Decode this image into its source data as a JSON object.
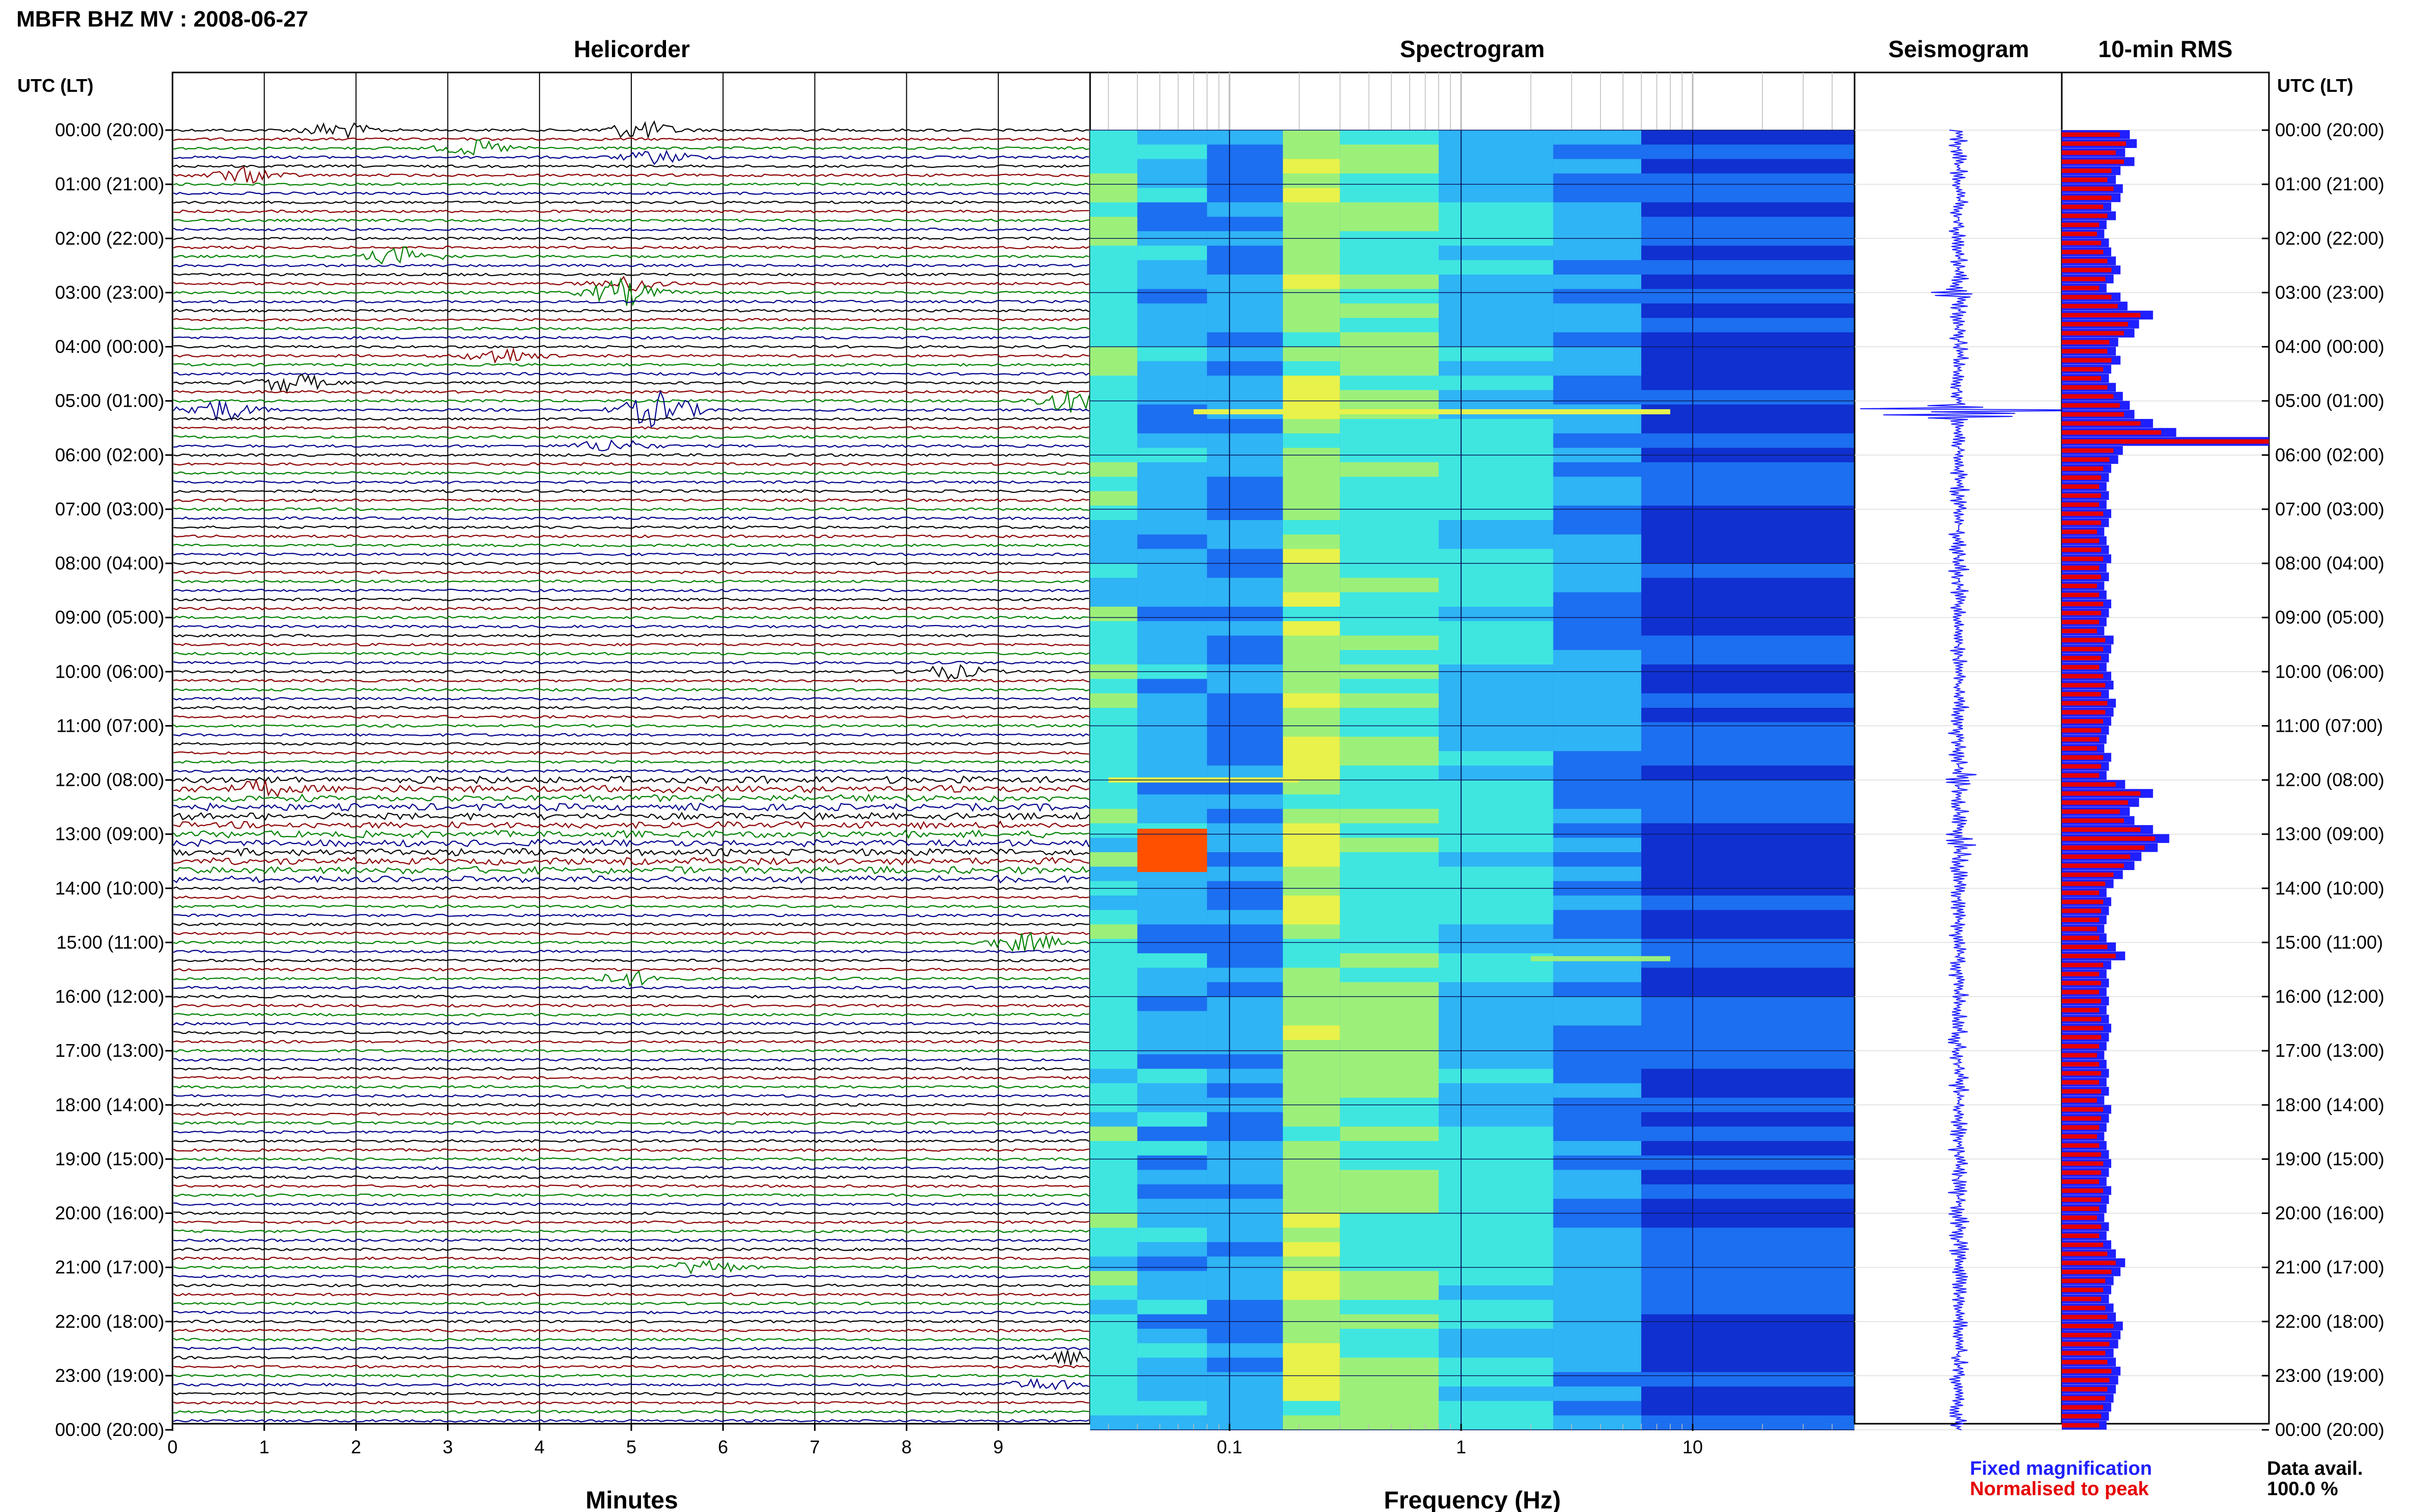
{
  "header": {
    "title": "MBFR BHZ MV : 2008-06-27"
  },
  "panels": {
    "helicorder_title": "Helicorder",
    "spectrogram_title": "Spectrogram",
    "seismogram_title": "Seismogram",
    "rms_title": "10-min RMS",
    "time_axis_label_left": "UTC (LT)",
    "time_axis_label_right": "UTC (LT)",
    "helicorder_xlabel": "Minutes",
    "spectrogram_xlabel": "Frequency (Hz)"
  },
  "legend": {
    "fixed": "Fixed magnification",
    "normalised": "Normalised to peak",
    "colors": {
      "fixed": "#1f1fff",
      "normalised": "#e60000"
    }
  },
  "availability": {
    "label": "Data avail.",
    "value": "100.0 %"
  },
  "chart_data": [
    {
      "type": "line",
      "name": "helicorder",
      "xlabel": "Minutes",
      "xlim": [
        0,
        10
      ],
      "x_ticks": [
        "0",
        "1",
        "2",
        "3",
        "4",
        "5",
        "6",
        "7",
        "8",
        "9"
      ],
      "row_labels": [
        "00:00 (20:00)",
        "01:00 (21:00)",
        "02:00 (22:00)",
        "03:00 (23:00)",
        "04:00 (00:00)",
        "05:00 (01:00)",
        "06:00 (02:00)",
        "07:00 (03:00)",
        "08:00 (04:00)",
        "09:00 (05:00)",
        "10:00 (06:00)",
        "11:00 (07:00)",
        "12:00 (08:00)",
        "13:00 (09:00)",
        "14:00 (10:00)",
        "15:00 (11:00)",
        "16:00 (12:00)",
        "17:00 (13:00)",
        "18:00 (14:00)",
        "19:00 (15:00)",
        "20:00 (16:00)",
        "21:00 (17:00)",
        "22:00 (18:00)",
        "23:00 (19:00)",
        "00:00 (20:00)"
      ],
      "trace_colors": [
        "#000000",
        "#8b0000",
        "#008000",
        "#00008b"
      ],
      "events": [
        {
          "hour": 0.0,
          "minute": 1.8,
          "amp": 2.2
        },
        {
          "hour": 0.0,
          "minute": 5.1,
          "amp": 2.5
        },
        {
          "hour": 0.33,
          "minute": 3.3,
          "amp": 2.0
        },
        {
          "hour": 0.5,
          "minute": 5.3,
          "amp": 1.8
        },
        {
          "hour": 0.83,
          "minute": 0.8,
          "amp": 2.0
        },
        {
          "hour": 2.33,
          "minute": 2.5,
          "amp": 2.5
        },
        {
          "hour": 2.83,
          "minute": 5.0,
          "amp": 2.0
        },
        {
          "hour": 3.0,
          "minute": 4.9,
          "amp": 3.5
        },
        {
          "hour": 4.17,
          "minute": 3.6,
          "amp": 2.2
        },
        {
          "hour": 4.67,
          "minute": 1.3,
          "amp": 2.5
        },
        {
          "hour": 5.17,
          "minute": 0.5,
          "amp": 3.0
        },
        {
          "hour": 5.17,
          "minute": 5.3,
          "amp": 5.0
        },
        {
          "hour": 5.0,
          "minute": 9.8,
          "amp": 3.0
        },
        {
          "hour": 5.83,
          "minute": 4.8,
          "amp": 1.8
        },
        {
          "hour": 10.0,
          "minute": 8.5,
          "amp": 1.8
        },
        {
          "hour": 12.17,
          "minute": 1.0,
          "amp": 1.6
        },
        {
          "hour": 15.0,
          "minute": 9.3,
          "amp": 2.5
        },
        {
          "hour": 15.67,
          "minute": 5.0,
          "amp": 1.8
        },
        {
          "hour": 21.0,
          "minute": 5.8,
          "amp": 2.0
        },
        {
          "hour": 22.67,
          "minute": 9.8,
          "amp": 2.0
        },
        {
          "hour": 23.17,
          "minute": 9.5,
          "amp": 1.6
        }
      ]
    },
    {
      "type": "heatmap",
      "name": "spectrogram",
      "xlabel": "Frequency (Hz)",
      "x_scale": "log",
      "xlim": [
        0.025,
        50
      ],
      "x_ticks": [
        "0.1",
        "1",
        "10"
      ],
      "colormap": [
        "#1030d0",
        "#1c6ff0",
        "#2fb4f5",
        "#3fe6e0",
        "#9cf07a",
        "#e8f24a",
        "#ffb400",
        "#ff5000"
      ],
      "features": [
        {
          "hour": 5.2,
          "fmin": 0.07,
          "fmax": 8,
          "level": 5
        },
        {
          "hour": 12.0,
          "fmin": 0.03,
          "fmax": 0.2,
          "level": 5
        },
        {
          "hour": 13.3,
          "fmin": 0.04,
          "fmax": 0.08,
          "level": 7
        },
        {
          "hour": 15.3,
          "fmin": 2,
          "fmax": 8,
          "level": 4
        }
      ]
    },
    {
      "type": "line",
      "name": "seismogram",
      "peak_hour": 5.2,
      "peak_amp": 3.0
    },
    {
      "type": "bar",
      "name": "10-min RMS",
      "normalised_to_peak": [
        0.28,
        0.31,
        0.26,
        0.3,
        0.24,
        0.22,
        0.25,
        0.24,
        0.2,
        0.22,
        0.18,
        0.17,
        0.19,
        0.2,
        0.22,
        0.24,
        0.21,
        0.18,
        0.24,
        0.27,
        0.38,
        0.32,
        0.3,
        0.23,
        0.22,
        0.24,
        0.2,
        0.19,
        0.22,
        0.25,
        0.28,
        0.3,
        0.38,
        0.48,
        1.0,
        0.25,
        0.23,
        0.2,
        0.19,
        0.18,
        0.19,
        0.18,
        0.2,
        0.19,
        0.17,
        0.18,
        0.19,
        0.2,
        0.18,
        0.19,
        0.17,
        0.18,
        0.2,
        0.19,
        0.18,
        0.17,
        0.21,
        0.2,
        0.19,
        0.18,
        0.2,
        0.21,
        0.19,
        0.22,
        0.21,
        0.2,
        0.19,
        0.18,
        0.17,
        0.2,
        0.19,
        0.18,
        0.26,
        0.38,
        0.32,
        0.28,
        0.3,
        0.38,
        0.45,
        0.4,
        0.33,
        0.3,
        0.25,
        0.21,
        0.18,
        0.2,
        0.19,
        0.18,
        0.17,
        0.18,
        0.22,
        0.26,
        0.2,
        0.18,
        0.19,
        0.18,
        0.19,
        0.18,
        0.19,
        0.2,
        0.19,
        0.18,
        0.17,
        0.18,
        0.19,
        0.18,
        0.19,
        0.17,
        0.2,
        0.19,
        0.18,
        0.17,
        0.18,
        0.19,
        0.2,
        0.19,
        0.18,
        0.2,
        0.19,
        0.18,
        0.17,
        0.19,
        0.18,
        0.2,
        0.22,
        0.26,
        0.24,
        0.21,
        0.2,
        0.19,
        0.21,
        0.22,
        0.25,
        0.24,
        0.23,
        0.21,
        0.22,
        0.24,
        0.23,
        0.22,
        0.21,
        0.2,
        0.19,
        0.18
      ]
    }
  ]
}
